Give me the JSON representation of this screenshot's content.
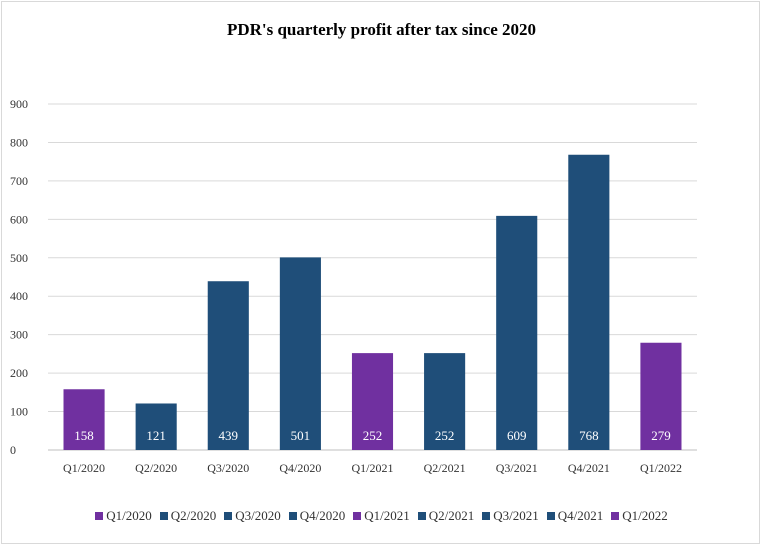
{
  "chart_data": {
    "type": "bar",
    "title": "PDR's quarterly  profit  after tax since 2020",
    "categories": [
      "Q1/2020",
      "Q2/2020",
      "Q3/2020",
      "Q4/2020",
      "Q1/2021",
      "Q2/2021",
      "Q3/2021",
      "Q4/2021",
      "Q1/2022"
    ],
    "values": [
      158,
      121,
      439,
      501,
      252,
      252,
      609,
      768,
      279
    ],
    "colors": [
      "#7030a0",
      "#1f4e79",
      "#1f4e79",
      "#1f4e79",
      "#7030a0",
      "#1f4e79",
      "#1f4e79",
      "#1f4e79",
      "#7030a0"
    ],
    "ylim": [
      0,
      900
    ],
    "yticks": [
      0,
      100,
      200,
      300,
      400,
      500,
      600,
      700,
      800,
      900
    ],
    "grid": true,
    "legend_position": "bottom",
    "legend": [
      "Q1/2020",
      "Q2/2020",
      "Q3/2020",
      "Q4/2020",
      "Q1/2021",
      "Q2/2021",
      "Q3/2021",
      "Q4/2021",
      "Q1/2022"
    ]
  }
}
